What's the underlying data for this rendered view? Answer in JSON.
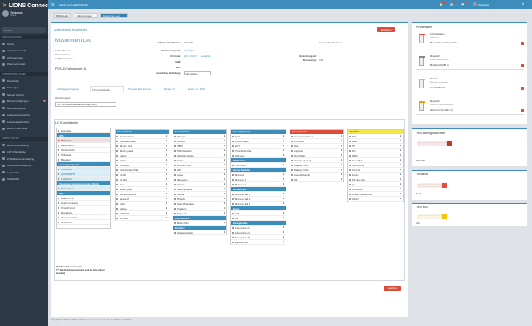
{
  "sidebar": {
    "brand": "LIONS Connect",
    "user": {
      "name": "Testpraxis",
      "status": "Online"
    },
    "search_placeholder": "Suchen...",
    "sections": [
      {
        "title": "HAUPTNAVIGATION",
        "items": [
          {
            "label": "Home"
          },
          {
            "label": "Auftragsübersicht"
          },
          {
            "label": "Anforderungen"
          },
          {
            "label": "Patientenverwalt."
          }
        ]
      },
      {
        "title": "LABOREINSTELLUNGEN",
        "items": [
          {
            "label": "Downloads"
          },
          {
            "label": "Messaging"
          },
          {
            "label": "Signiert Signiert"
          },
          {
            "label": "Benachrichtigungen",
            "count": "1"
          },
          {
            "label": "Befunddelegation"
          },
          {
            "label": "Leistungsverzeichnis"
          },
          {
            "label": "Laborbelegübersicht"
          },
          {
            "label": "Externe Web-Links"
          }
        ]
      },
      {
        "title": "ADMINISTRATION",
        "items": [
          {
            "label": "Benutzerverwaltung"
          },
          {
            "label": "LDT-Schnittstelle"
          },
          {
            "label": "Profilbasierte Verwaltung"
          },
          {
            "label": "Arbeitsplatzverwaltung"
          },
          {
            "label": "Logeinträge"
          },
          {
            "label": "SUMMARY"
          }
        ]
      }
    ]
  },
  "topbar": {
    "title": "Zurück zum LABOR Bericht",
    "user": "Testpraxis"
  },
  "tabs": [
    {
      "label": "MENU Labs"
    },
    {
      "label": "Anforderungen"
    },
    {
      "label": "Mustermann Leo",
      "active": true
    }
  ],
  "main": {
    "banner": "Anforderung bearbeiten",
    "save_label": "Speichern",
    "patient": {
      "name": "Mustermann Leo",
      "dob": "13.05.1951 / 71",
      "street": "Musterstraße 1",
      "city": "12345 Musterstadt",
      "pvs_label": "PVS-ID/Fallnummer:",
      "pvs_value": "1"
    },
    "fields": {
      "auftrag_label": "Auftrags-Identifikation:",
      "auftrag_value": "12345789",
      "abnahme_label": "Abnahmezeitpunkt:",
      "abnahme_value": "01.07.2022",
      "icd_label": "ICD-Code:",
      "icd_value": "Z00.1 / Z00.9",
      "icd_link": "auswählen",
      "ssw_label": "SSW:",
      "ssw_value": "",
      "edz_label": "EDZ:",
      "edz_value": "",
      "zusaetzlich_label": "zusätzlicher Befundweg:",
      "zusaetzlich_value": "bitte wählen...",
      "status_label": "Prüfstatus/Befundstatus:",
      "status_value": "Protocolauftrit Bearbeitet",
      "versicherung_label": "Versicherungsart:",
      "versicherung_value": "1",
      "einsender_label": "Einsendertyp:",
      "einsender_value": "LPM"
    },
    "subtabs": [
      {
        "label": "Auftraggeberangaben"
      },
      {
        "label": "LG Kombitabellen",
        "active": true
      },
      {
        "label": "Physical Labor Prozess"
      },
      {
        "label": "Muster 10"
      },
      {
        "label": "Muster 10 - MKP"
      }
    ],
    "analyse_label": "Abrechnungsart",
    "analyse_select": "LG - LG Gliederhistorieabrechnung (Klinik)",
    "panel_title": "LG Kombitabelle",
    "columns": [
      {
        "title": "",
        "color": "#ffffff",
        "rows": [
          {
            "label": "ideas Zöllen",
            "style": "plain"
          },
          {
            "label": "ANTA",
            "style": "sub"
          },
          {
            "label": "Blutbild groß",
            "style": "red"
          },
          {
            "label": "Blutbild klein + T",
            "style": "plain"
          },
          {
            "label": "HbA1c in EDTA",
            "style": "plain"
          },
          {
            "label": "Hb/Retikulat",
            "style": "plain"
          },
          {
            "label": "Blutsenkung",
            "style": "plain"
          },
          {
            "label": "Gerinnungsdiagnostik",
            "style": "sub"
          },
          {
            "label": "Thrombinzeit",
            "style": "sel"
          },
          {
            "label": "Quick/INR/aPTT",
            "style": "sel"
          },
          {
            "label": "Lipidprofil Mi",
            "style": "sel"
          },
          {
            "label": "Präoperatives Gerinnungsscreening (Kombi)",
            "style": "sub"
          },
          {
            "label": "Thrombozyten",
            "style": "sel"
          },
          {
            "label": "URIN",
            "style": "sub"
          },
          {
            "label": "Kreatinin i.Urin",
            "style": "plain"
          },
          {
            "label": "Kreatinin-Clearance",
            "style": "plain"
          },
          {
            "label": "Harnstoff im Urin",
            "style": "plain"
          },
          {
            "label": "Mikroalbumin",
            "style": "plain"
          },
          {
            "label": "Albuminurie im Urin",
            "style": "plain"
          },
          {
            "label": "Cotinin i.Urin",
            "style": "plain"
          }
        ]
      },
      {
        "title": "Serum/Vollblut",
        "color": "#3c8dbc",
        "rows": [
          {
            "label": "Alk. Phosphatase",
            "style": "plain"
          },
          {
            "label": "Pankreas Amylase",
            "style": "plain"
          },
          {
            "label": "Bilirubin, direkt",
            "style": "plain"
          },
          {
            "label": "Bilirubin gesamt",
            "style": "plain"
          },
          {
            "label": "Calcium",
            "style": "plain"
          },
          {
            "label": "Chlorid",
            "style": "plain"
          },
          {
            "label": "Cholesterin",
            "style": "plain"
          },
          {
            "label": "Cholinesterase (CHE)",
            "style": "plain"
          },
          {
            "label": "CK-MB",
            "style": "plain"
          },
          {
            "label": "CK-NAC",
            "style": "plain"
          },
          {
            "label": "Eisen",
            "style": "plain"
          },
          {
            "label": "Eiweiß, gesamt",
            "style": "plain"
          },
          {
            "label": "Eiw.-Elektrophorese",
            "style": "plain"
          },
          {
            "label": "gamma-GT",
            "style": "plain"
          },
          {
            "label": "GLDH",
            "style": "plain"
          },
          {
            "label": "Glukose",
            "style": "plain"
          },
          {
            "label": "GOT/ASAT",
            "style": "plain"
          },
          {
            "label": "GPT/ALAT",
            "style": "plain"
          }
        ]
      },
      {
        "title": "Serum/Vollblut",
        "color": "#3c8dbc",
        "rows": [
          {
            "label": "Harnsäure",
            "style": "plain"
          },
          {
            "label": "Harnstoff",
            "style": "plain"
          },
          {
            "label": "HBDH",
            "style": "plain"
          },
          {
            "label": "HDL-Cholesterin",
            "style": "plain"
          },
          {
            "label": "LDL/LHDL Quotient",
            "style": "plain"
          },
          {
            "label": "Kalium",
            "style": "plain"
          },
          {
            "label": "Kreatinin i. Jaffe",
            "style": "plain"
          },
          {
            "label": "LDH",
            "style": "plain"
          },
          {
            "label": "Lipase",
            "style": "plain"
          },
          {
            "label": "Magnesium",
            "style": "plain"
          },
          {
            "label": "Natrium",
            "style": "plain"
          },
          {
            "label": "Natriumphosphat",
            "style": "plain"
          },
          {
            "label": "Ostriole",
            "style": "plain"
          },
          {
            "label": "Phosphat",
            "style": "plain"
          },
          {
            "label": "Saure Phosphatase",
            "style": "plain"
          },
          {
            "label": "Transferrin",
            "style": "plain"
          },
          {
            "label": "Triglyceride",
            "style": "plain"
          },
          {
            "label": "Blut-/Urin-PSCA",
            "style": "sub"
          },
          {
            "label": "Blut im Stuhl",
            "style": "plain"
          },
          {
            "label": "Procalcito",
            "style": "sub"
          },
          {
            "label": "Sandost Reduktion",
            "style": "plain"
          }
        ]
      },
      {
        "title": "Serologie (Citrat)",
        "color": "#3c8dbc",
        "rows": [
          {
            "label": "Quick",
            "style": "plain"
          },
          {
            "label": "QUICK-Therapi",
            "style": "plain"
          },
          {
            "label": "aPTT",
            "style": "plain"
          },
          {
            "label": "Thrombinzeit Citrat",
            "style": "plain"
          },
          {
            "label": "Fibrinogen",
            "style": "plain"
          },
          {
            "label": "EDTA/Antikör.",
            "style": "sub"
          },
          {
            "label": "TSH in EDTA",
            "style": "plain"
          },
          {
            "label": "Harnsre Blutzucker",
            "style": "sub"
          },
          {
            "label": "Blutzucker",
            "style": "plain"
          },
          {
            "label": "Blutzucker 1",
            "style": "plain"
          },
          {
            "label": "Blutzucker 2",
            "style": "plain"
          },
          {
            "label": "Harnsäure Mell",
            "style": "sub"
          },
          {
            "label": "Blutzucker Mell 1",
            "style": "plain"
          },
          {
            "label": "Blutzucker Mell 2",
            "style": "plain"
          },
          {
            "label": "Blutzucker Mell 3",
            "style": "plain"
          },
          {
            "label": "Pressis",
            "style": "sub"
          },
          {
            "label": "CRP",
            "style": "plain"
          },
          {
            "label": "Ca",
            "style": "plain"
          },
          {
            "label": "Immunglobuline",
            "style": "sub"
          },
          {
            "label": "Immunglobulin A",
            "style": "plain"
          },
          {
            "label": "Immunglobulin G",
            "style": "plain"
          },
          {
            "label": "Immunglobulin M",
            "style": "plain"
          },
          {
            "label": "IgE total PSCA",
            "style": "plain"
          }
        ]
      },
      {
        "title": "Standardprofile",
        "color": "#dd4b39",
        "rows": [
          {
            "label": "LG Parameter Screen",
            "style": "plain"
          },
          {
            "label": "Profil Leber",
            "style": "plain"
          },
          {
            "label": "Niere",
            "style": "plain"
          },
          {
            "label": "Lipidprofil",
            "style": "plain"
          },
          {
            "label": "Profil HbA1c",
            "style": "plain"
          },
          {
            "label": "Vorsorge Check-Up",
            "style": "plain"
          },
          {
            "label": "Diabetes Profil 1",
            "style": "plain"
          },
          {
            "label": "Diabetes Profil 2",
            "style": "plain"
          },
          {
            "label": "Gesundheitsprofil",
            "style": "plain"
          },
          {
            "label": "HP",
            "style": "plain"
          }
        ]
      },
      {
        "title": "Perzellen",
        "color": "#f5e642",
        "rows": [
          {
            "label": "TSH",
            "style": "plain"
          },
          {
            "label": "Leber",
            "style": "plain"
          },
          {
            "label": "fT3",
            "style": "plain"
          },
          {
            "label": "FPS",
            "style": "plain"
          },
          {
            "label": "PPSO",
            "style": "plain"
          },
          {
            "label": "Freies PSA",
            "style": "plain"
          },
          {
            "label": "Test PSPA 1.2",
            "style": "plain"
          },
          {
            "label": "Test C 80",
            "style": "plain"
          },
          {
            "label": "Ferritin",
            "style": "plain"
          },
          {
            "label": "PSL ohne Kost",
            "style": "plain"
          },
          {
            "label": "ga",
            "style": "plain"
          },
          {
            "label": "Vitamin B12",
            "style": "plain"
          },
          {
            "label": "Folsäure Nachkontrolle",
            "style": "plain"
          },
          {
            "label": "NAK13",
            "style": "plain"
          }
        ]
      }
    ],
    "notes": [
      "(*= GOÄ nicht abrechenbar",
      "(**= Bei Abrechnungsart kann wird die GOx-Anlerte angelegt)"
    ]
  },
  "right_panels": {
    "probenware": {
      "title": "Probenware",
      "items": [
        {
          "name": "LG Kombiarten",
          "sub": "Vollblut 5.0",
          "link": "Blutentnahme ist nicht gebucht",
          "cap": "#e74c3c"
        },
        {
          "name": "Muster 10",
          "sub": "Serum/ Vollbl (Gel) 8ml",
          "link": "Blutbild groß (GBB, 1)",
          "cap": "#888888"
        },
        {
          "name": "Testeleir",
          "sub": "Röhrchen für Testleiter",
          "link": "Fetal T4 PTU 022",
          "cap": "#bbbbbb"
        },
        {
          "name": "Muster 10",
          "sub": "Muster 10 Laborauftrag (MLK)",
          "link": "Albumin im Urin (Mikro, 5)",
          "cap": "#f39c12"
        }
      ]
    },
    "rest": {
      "title": "Test-Laborgerätschaft",
      "caption": "EDTA-Blut"
    },
    "testlabor": {
      "title": "Testlabor",
      "caption": "Serum"
    },
    "test_mv2": {
      "title": "Test MV2",
      "caption": "Urin"
    }
  },
  "footer": {
    "text": "Copyright © 2024 by",
    "company": "LABOR LIONS Software & Solutions GmbH",
    "rights": "Alle Rechte vorbehalten."
  }
}
